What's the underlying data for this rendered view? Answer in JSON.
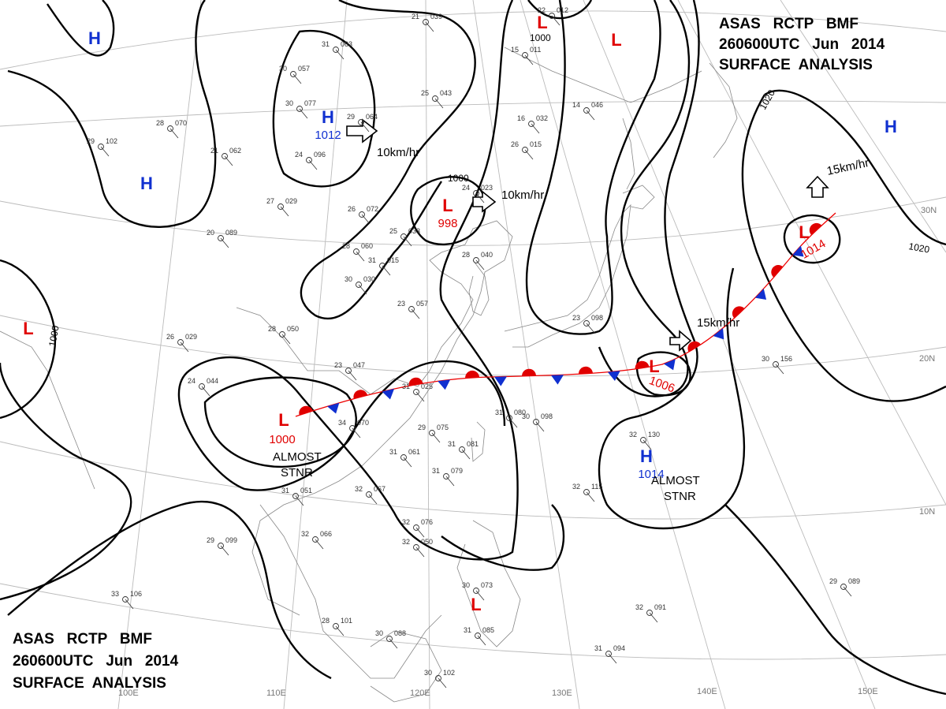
{
  "header_top": {
    "line1": "ASAS   RCTP   BMF",
    "line2": "260600UTC   Jun   2014",
    "line3": "SURFACE  ANALYSIS"
  },
  "header_bottom": {
    "line1": "ASAS   RCTP   BMF",
    "line2": "260600UTC   Jun   2014",
    "line3": "SURFACE  ANALYSIS"
  },
  "pressure_centers": [
    {
      "type": "H",
      "pressure": "",
      "color": "#1030d0"
    },
    {
      "type": "H",
      "pressure": "",
      "color": "#1030d0"
    },
    {
      "type": "H",
      "pressure": "1012",
      "color": "#1030d0"
    },
    {
      "type": "H",
      "pressure": "",
      "color": "#1030d0"
    },
    {
      "type": "H",
      "pressure": "1014",
      "color": "#1030d0"
    },
    {
      "type": "L",
      "pressure": "",
      "color": "#e00000"
    },
    {
      "type": "L",
      "pressure": "",
      "color": "#e00000"
    },
    {
      "type": "L",
      "pressure": "998",
      "color": "#e00000"
    },
    {
      "type": "L",
      "pressure": "1000",
      "color": "#e00000"
    },
    {
      "type": "L",
      "pressure": "1006",
      "color": "#e00000"
    },
    {
      "type": "L",
      "pressure": "1014",
      "color": "#e00000"
    },
    {
      "type": "L",
      "pressure": "",
      "color": "#e00000"
    },
    {
      "type": "L",
      "pressure": "",
      "color": "#e00000"
    }
  ],
  "isobar_labels": [
    "1000",
    "1000",
    "1000",
    "1020",
    "1020"
  ],
  "motion_labels": [
    "10km/hr",
    "10km/hr",
    "15km/hr",
    "15km/hr"
  ],
  "annotations": [
    {
      "line1": "ALMOST",
      "line2": "STNR"
    },
    {
      "line1": "ALMOST",
      "line2": "STNR"
    }
  ],
  "lon_labels": [
    "100E",
    "110E",
    "120E",
    "130E",
    "140E",
    "150E"
  ],
  "lat_labels": [
    "30N",
    "20N",
    "10N"
  ],
  "front": {
    "type": "stationary",
    "warm_color": "#e00000",
    "cold_color": "#1030d0"
  },
  "stations": [
    {
      "t": "31",
      "p": "063"
    },
    {
      "t": "30",
      "p": "057"
    },
    {
      "t": "30",
      "p": "077"
    },
    {
      "t": "29",
      "p": "064"
    },
    {
      "t": "25",
      "p": "043"
    },
    {
      "t": "24",
      "p": "096"
    },
    {
      "t": "21",
      "p": "062"
    },
    {
      "t": "28",
      "p": "070"
    },
    {
      "t": "29",
      "p": "102"
    },
    {
      "t": "27",
      "p": "029"
    },
    {
      "t": "26",
      "p": "072"
    },
    {
      "t": "20",
      "p": "089"
    },
    {
      "t": "28",
      "p": "060"
    },
    {
      "t": "31",
      "p": "015"
    },
    {
      "t": "30",
      "p": "030"
    },
    {
      "t": "25",
      "p": "033"
    },
    {
      "t": "24",
      "p": "023"
    },
    {
      "t": "28",
      "p": "040"
    },
    {
      "t": "23",
      "p": "057"
    },
    {
      "t": "28",
      "p": "050"
    },
    {
      "t": "26",
      "p": "029"
    },
    {
      "t": "23",
      "p": "047"
    },
    {
      "t": "24",
      "p": "044"
    },
    {
      "t": "31",
      "p": "025"
    },
    {
      "t": "34",
      "p": "070"
    },
    {
      "t": "29",
      "p": "075"
    },
    {
      "t": "31",
      "p": "081"
    },
    {
      "t": "31",
      "p": "061"
    },
    {
      "t": "31",
      "p": "079"
    },
    {
      "t": "31",
      "p": "051"
    },
    {
      "t": "32",
      "p": "067"
    },
    {
      "t": "32",
      "p": "066"
    },
    {
      "t": "29",
      "p": "099"
    },
    {
      "t": "32",
      "p": "076"
    },
    {
      "t": "32",
      "p": "050"
    },
    {
      "t": "33",
      "p": "106"
    },
    {
      "t": "28",
      "p": "101"
    },
    {
      "t": "30",
      "p": "088"
    },
    {
      "t": "30",
      "p": "102"
    },
    {
      "t": "30",
      "p": "073"
    },
    {
      "t": "31",
      "p": "085"
    },
    {
      "t": "32",
      "p": "130"
    },
    {
      "t": "32",
      "p": "115"
    },
    {
      "t": "32",
      "p": "091"
    },
    {
      "t": "31",
      "p": "094"
    },
    {
      "t": "29",
      "p": "089"
    },
    {
      "t": "30",
      "p": "156"
    },
    {
      "t": "15",
      "p": "011"
    },
    {
      "t": "16",
      "p": "032"
    },
    {
      "t": "26",
      "p": "015"
    },
    {
      "t": "14",
      "p": "046"
    },
    {
      "t": "23",
      "p": "098"
    },
    {
      "t": "30",
      "p": "098"
    },
    {
      "t": "31",
      "p": "080"
    },
    {
      "t": "21",
      "p": "039"
    },
    {
      "t": "22",
      "p": "012"
    }
  ]
}
